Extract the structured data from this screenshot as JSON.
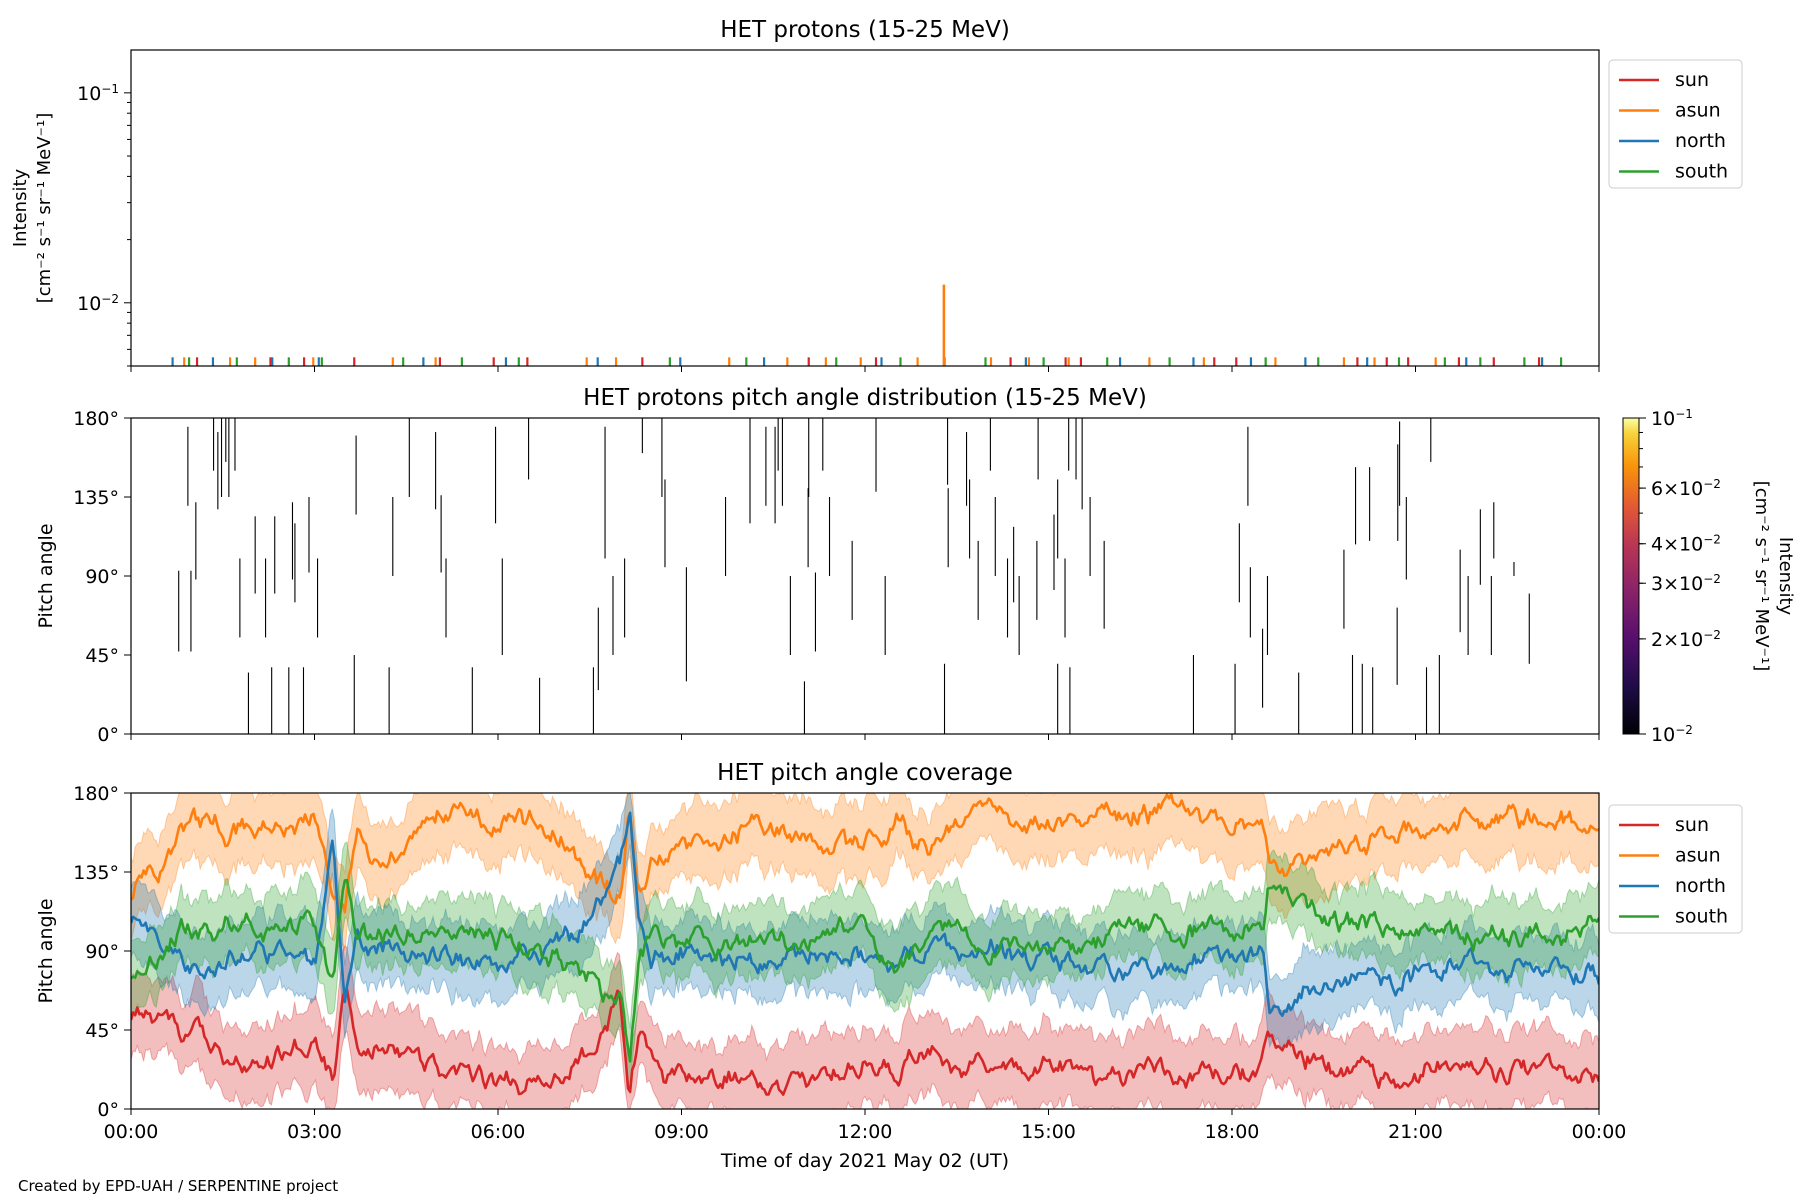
{
  "footer": "Created by EPD-UAH / SERPENTINE project",
  "colors": {
    "sun": "#d62728",
    "asun": "#ff7f0e",
    "north": "#1f77b4",
    "south": "#2ca02c"
  },
  "chart_data": [
    {
      "type": "line",
      "title": "HET protons (15-25 MeV)",
      "ylabel_line1": "Intensity",
      "ylabel_line2": "[cm⁻² s⁻¹ sr⁻¹ MeV⁻¹]",
      "yscale": "log",
      "ylim": [
        0.005,
        0.16
      ],
      "yticks": [
        {
          "value": 0.1,
          "base": "10",
          "exp": "−1"
        },
        {
          "value": 0.01,
          "base": "10",
          "exp": "−2"
        }
      ],
      "legend": {
        "placement": "outside-right-top",
        "entries": [
          "sun",
          "asun",
          "north",
          "south"
        ]
      },
      "baseline_level": 0.0055,
      "series": [
        {
          "name": "sun",
          "values_at_hours": [
            1.08,
            2.28,
            2.83,
            3.65,
            5.05,
            5.93,
            6.48,
            8.36,
            11.08,
            12.18,
            13.3,
            14.38,
            15.28,
            15.53,
            17.71,
            18.07,
            20.05,
            20.53,
            20.88,
            21.71,
            22.28,
            23.02
          ]
        },
        {
          "name": "asun",
          "values_at_hours": [
            0.87,
            1.62,
            2.03,
            2.98,
            4.28,
            4.98,
            7.45,
            7.93,
            9.78,
            10.73,
            11.36,
            11.93,
            12.86,
            14.06,
            14.68,
            15.33,
            16.65,
            17.54,
            18.71,
            19.83,
            20.33,
            21.33
          ],
          "spike": {
            "hour": 13.29,
            "value": 0.0122
          }
        },
        {
          "name": "north",
          "values_at_hours": [
            0.68,
            1.34,
            2.31,
            3.07,
            4.78,
            6.13,
            7.63,
            8.98,
            10.35,
            12.27,
            14.63,
            16.17,
            17.37,
            18.31,
            19.2,
            20.21,
            21.83,
            23.07
          ]
        },
        {
          "name": "south",
          "values_at_hours": [
            0.95,
            1.73,
            2.58,
            3.12,
            4.45,
            5.41,
            6.34,
            8.81,
            10.06,
            11.53,
            12.58,
            13.97,
            14.92,
            15.96,
            16.98,
            18.55,
            19.41,
            20.73,
            21.48,
            22.06,
            22.78,
            23.38
          ]
        }
      ]
    },
    {
      "type": "heatmap",
      "title": "HET protons pitch angle distribution (15-25 MeV)",
      "ylabel": "Pitch angle",
      "ylim": [
        0,
        180
      ],
      "yticks": [
        "0°",
        "45°",
        "90°",
        "135°",
        "180°"
      ],
      "colorbar": {
        "label_line1": "Intensity",
        "label_line2": "[cm⁻² s⁻¹ sr⁻¹ MeV⁻¹]",
        "scale": "log",
        "range": [
          0.01,
          0.1
        ],
        "ticks": [
          {
            "value": 0.1,
            "mant": "",
            "base": "10",
            "exp": "−1"
          },
          {
            "value": 0.06,
            "mant": "6×",
            "base": "10",
            "exp": "−2"
          },
          {
            "value": 0.04,
            "mant": "4×",
            "base": "10",
            "exp": "−2"
          },
          {
            "value": 0.03,
            "mant": "3×",
            "base": "10",
            "exp": "−2"
          },
          {
            "value": 0.02,
            "mant": "2×",
            "base": "10",
            "exp": "−2"
          },
          {
            "value": 0.01,
            "mant": "",
            "base": "10",
            "exp": "−2"
          }
        ]
      },
      "segments": [
        [
          0.78,
          47,
          93
        ],
        [
          0.93,
          130,
          175
        ],
        [
          0.98,
          47,
          93
        ],
        [
          1.06,
          88,
          132
        ],
        [
          1.35,
          150,
          180
        ],
        [
          1.42,
          128,
          172
        ],
        [
          1.48,
          135,
          180
        ],
        [
          1.55,
          155,
          180
        ],
        [
          1.6,
          135,
          180
        ],
        [
          1.7,
          150,
          180
        ],
        [
          1.78,
          55,
          100
        ],
        [
          1.92,
          0,
          35
        ],
        [
          2.03,
          80,
          124
        ],
        [
          2.2,
          55,
          100
        ],
        [
          2.3,
          0,
          38
        ],
        [
          2.35,
          80,
          124
        ],
        [
          2.58,
          0,
          38
        ],
        [
          2.64,
          88,
          132
        ],
        [
          2.68,
          75,
          120
        ],
        [
          2.82,
          0,
          38
        ],
        [
          2.91,
          92,
          135
        ],
        [
          3.05,
          55,
          100
        ],
        [
          3.65,
          0,
          45
        ],
        [
          3.68,
          125,
          170
        ],
        [
          4.22,
          0,
          38
        ],
        [
          4.28,
          90,
          135
        ],
        [
          4.55,
          135,
          180
        ],
        [
          4.98,
          128,
          172
        ],
        [
          5.07,
          92,
          136
        ],
        [
          5.15,
          55,
          100
        ],
        [
          5.58,
          0,
          38
        ],
        [
          5.96,
          120,
          175
        ],
        [
          6.07,
          45,
          100
        ],
        [
          6.5,
          145,
          180
        ],
        [
          6.68,
          0,
          32
        ],
        [
          7.56,
          0,
          38
        ],
        [
          7.64,
          25,
          72
        ],
        [
          7.75,
          100,
          175
        ],
        [
          7.88,
          45,
          90
        ],
        [
          8.07,
          55,
          100
        ],
        [
          8.36,
          160,
          180
        ],
        [
          8.68,
          135,
          180
        ],
        [
          8.73,
          95,
          145
        ],
        [
          9.08,
          30,
          95
        ],
        [
          9.72,
          90,
          135
        ],
        [
          10.12,
          120,
          180
        ],
        [
          10.38,
          130,
          175
        ],
        [
          10.53,
          120,
          175
        ],
        [
          10.58,
          150,
          180
        ],
        [
          10.65,
          130,
          180
        ],
        [
          10.78,
          45,
          90
        ],
        [
          11.01,
          0,
          30
        ],
        [
          11.07,
          95,
          140
        ],
        [
          11.08,
          135,
          180
        ],
        [
          11.19,
          47,
          92
        ],
        [
          11.31,
          150,
          180
        ],
        [
          11.42,
          90,
          135
        ],
        [
          11.79,
          65,
          110
        ],
        [
          12.18,
          138,
          180
        ],
        [
          12.33,
          45,
          90
        ],
        [
          13.3,
          0,
          40
        ],
        [
          13.35,
          142,
          180
        ],
        [
          13.36,
          95,
          140
        ],
        [
          13.66,
          130,
          172
        ],
        [
          13.71,
          100,
          145
        ],
        [
          13.85,
          65,
          110
        ],
        [
          14.05,
          150,
          180
        ],
        [
          14.13,
          90,
          135
        ],
        [
          14.33,
          55,
          100
        ],
        [
          14.43,
          75,
          118
        ],
        [
          14.52,
          45,
          90
        ],
        [
          14.81,
          65,
          110
        ],
        [
          14.83,
          145,
          180
        ],
        [
          15.09,
          82,
          125
        ],
        [
          15.15,
          0,
          40
        ],
        [
          15.15,
          100,
          145
        ],
        [
          15.27,
          55,
          100
        ],
        [
          15.33,
          150,
          180
        ],
        [
          15.35,
          0,
          38
        ],
        [
          15.45,
          145,
          180
        ],
        [
          15.55,
          128,
          180
        ],
        [
          15.68,
          90,
          135
        ],
        [
          15.91,
          60,
          110
        ],
        [
          17.37,
          0,
          45
        ],
        [
          18.05,
          0,
          40
        ],
        [
          18.12,
          75,
          120
        ],
        [
          18.26,
          130,
          175
        ],
        [
          18.3,
          55,
          95
        ],
        [
          18.5,
          15,
          60
        ],
        [
          18.58,
          45,
          90
        ],
        [
          19.09,
          0,
          35
        ],
        [
          19.83,
          60,
          105
        ],
        [
          19.97,
          0,
          45
        ],
        [
          20.02,
          108,
          152
        ],
        [
          20.13,
          0,
          40
        ],
        [
          20.25,
          110,
          152
        ],
        [
          20.3,
          0,
          38
        ],
        [
          20.7,
          28,
          72
        ],
        [
          20.71,
          110,
          165
        ],
        [
          20.74,
          130,
          178
        ],
        [
          20.85,
          88,
          135
        ],
        [
          21.18,
          0,
          38
        ],
        [
          21.25,
          155,
          180
        ],
        [
          21.39,
          0,
          45
        ],
        [
          21.73,
          58,
          105
        ],
        [
          21.86,
          45,
          90
        ],
        [
          22.06,
          85,
          128
        ],
        [
          22.24,
          45,
          90
        ],
        [
          22.28,
          100,
          132
        ],
        [
          22.61,
          90,
          98
        ],
        [
          22.86,
          40,
          80
        ]
      ]
    },
    {
      "type": "area",
      "title": "HET pitch angle coverage",
      "ylabel": "Pitch angle",
      "xlabel": "Time of day 2021 May 02 (UT)",
      "ylim": [
        0,
        180
      ],
      "yticks": [
        "0°",
        "45°",
        "90°",
        "135°",
        "180°"
      ],
      "xticks": [
        "00:00",
        "03:00",
        "06:00",
        "09:00",
        "12:00",
        "15:00",
        "18:00",
        "21:00",
        "00:00"
      ],
      "xlim_hours": [
        0,
        24
      ],
      "legend": {
        "placement": "outside-right-top",
        "entries": [
          "sun",
          "asun",
          "north",
          "south"
        ]
      },
      "series": [
        {
          "name": "sun",
          "band_halfwidth_deg": 22,
          "hours": [
            0,
            1,
            2,
            3,
            3.3,
            3.5,
            3.7,
            4,
            5,
            6,
            7,
            7.5,
            8,
            8.15,
            8.3,
            8.5,
            8.7,
            9,
            10,
            11,
            12,
            12.5,
            13,
            13.5,
            14,
            15,
            16,
            17,
            18,
            18.5,
            18.6,
            19,
            20,
            21,
            22,
            23,
            24
          ],
          "values": [
            55,
            40,
            25,
            35,
            15,
            70,
            30,
            35,
            25,
            15,
            20,
            35,
            60,
            10,
            45,
            30,
            20,
            25,
            20,
            20,
            25,
            20,
            40,
            20,
            28,
            20,
            18,
            15,
            20,
            25,
            35,
            30,
            25,
            22,
            20,
            25,
            20
          ]
        },
        {
          "name": "asun",
          "band_halfwidth_deg": 22,
          "hours": [
            0,
            0.5,
            1,
            2,
            3,
            3.3,
            3.5,
            3.7,
            4,
            5,
            6,
            7,
            7.5,
            8,
            8.15,
            8.3,
            8.5,
            9,
            10,
            11,
            12,
            12.5,
            13,
            13.5,
            14,
            15,
            16,
            17,
            18,
            18.5,
            18.6,
            19,
            20,
            21,
            22,
            23,
            24
          ],
          "values": [
            125,
            135,
            160,
            155,
            160,
            120,
            110,
            160,
            150,
            170,
            165,
            160,
            130,
            120,
            175,
            130,
            145,
            150,
            160,
            150,
            145,
            165,
            145,
            160,
            165,
            165,
            165,
            170,
            160,
            165,
            145,
            140,
            150,
            160,
            165,
            165,
            160
          ]
        },
        {
          "name": "north",
          "band_halfwidth_deg": 20,
          "hours": [
            0,
            1,
            2,
            3,
            3.3,
            3.5,
            3.7,
            4,
            5,
            6,
            7,
            7.5,
            8,
            8.15,
            8.3,
            8.5,
            9,
            10,
            11,
            12,
            12.5,
            13,
            13.5,
            14,
            15,
            16,
            17,
            18,
            18.5,
            18.6,
            19,
            20,
            21,
            22,
            23,
            24
          ],
          "values": [
            110,
            80,
            90,
            85,
            150,
            60,
            95,
            90,
            85,
            85,
            90,
            110,
            140,
            175,
            120,
            85,
            90,
            85,
            90,
            85,
            80,
            95,
            85,
            90,
            90,
            80,
            85,
            85,
            90,
            60,
            65,
            75,
            80,
            85,
            80,
            75
          ]
        },
        {
          "name": "south",
          "band_halfwidth_deg": 20,
          "hours": [
            0,
            1,
            2,
            3,
            3.3,
            3.5,
            3.7,
            4,
            5,
            6,
            7,
            7.5,
            8,
            8.15,
            8.3,
            8.5,
            9,
            10,
            11,
            12,
            12.5,
            13,
            13.5,
            14,
            15,
            16,
            17,
            18,
            18.5,
            18.6,
            19,
            20,
            21,
            22,
            23,
            24
          ],
          "values": [
            80,
            100,
            105,
            100,
            65,
            130,
            90,
            100,
            100,
            95,
            85,
            75,
            60,
            20,
            90,
            95,
            95,
            95,
            95,
            100,
            85,
            95,
            110,
            95,
            95,
            95,
            100,
            105,
            100,
            125,
            115,
            110,
            100,
            95,
            100,
            105
          ]
        }
      ]
    }
  ]
}
